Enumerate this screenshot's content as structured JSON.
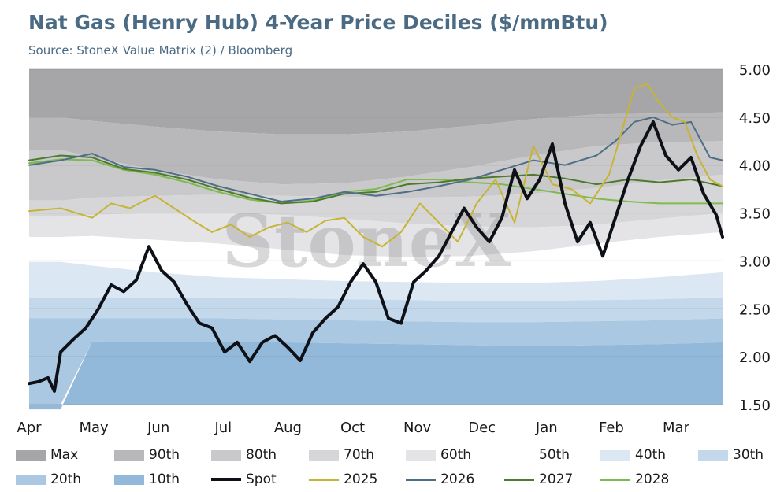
{
  "title": "Nat Gas (Henry Hub) 4-Year Price Deciles ($/mmBtu)",
  "subtitle": "Source: StoneX Value Matrix (2) / Bloomberg",
  "watermark": "StoneX",
  "colors": {
    "max": "#a6a6a8",
    "p90": "#b8b8ba",
    "p80": "#c9c9cb",
    "p70": "#d6d6d8",
    "p60": "#e4e4e6",
    "p50": "#ffffff",
    "p40": "#dbe7f2",
    "p30": "#c3d8ea",
    "p20": "#abc8e2",
    "p10": "#92b8da",
    "spot": "#0d1117",
    "y2025": "#c7b436",
    "y2026": "#4e6f86",
    "y2027": "#4e7a2e",
    "y2028": "#7fba4f"
  },
  "legend": [
    {
      "key": "max",
      "label": "Max",
      "kind": "box"
    },
    {
      "key": "p90",
      "label": "90th",
      "kind": "box"
    },
    {
      "key": "p80",
      "label": "80th",
      "kind": "box"
    },
    {
      "key": "p70",
      "label": "70th",
      "kind": "box"
    },
    {
      "key": "p60",
      "label": "60th",
      "kind": "box"
    },
    {
      "key": "p50",
      "label": "50th",
      "kind": "box"
    },
    {
      "key": "p40",
      "label": "40th",
      "kind": "box"
    },
    {
      "key": "p30",
      "label": "30th",
      "kind": "box"
    },
    {
      "key": "p20",
      "label": "20th",
      "kind": "box"
    },
    {
      "key": "p10",
      "label": "10th",
      "kind": "box"
    },
    {
      "key": "spot",
      "label": "Spot",
      "kind": "line"
    },
    {
      "key": "y2025",
      "label": "2025",
      "kind": "line"
    },
    {
      "key": "y2026",
      "label": "2026",
      "kind": "line"
    },
    {
      "key": "y2027",
      "label": "2027",
      "kind": "line"
    },
    {
      "key": "y2028",
      "label": "2028",
      "kind": "line"
    }
  ],
  "chart_data": {
    "type": "area",
    "title": "Nat Gas (Henry Hub) 4-Year Price Deciles ($/mmBtu)",
    "subtitle": "Source: StoneX Value Matrix (2) / Bloomberg",
    "x_tick_labels": [
      "Apr",
      "May",
      "Jun",
      "Jul",
      "Aug",
      "Oct",
      "Nov",
      "Dec",
      "Jan",
      "Feb",
      "Mar"
    ],
    "y_tick_labels": [
      "5.00",
      "4.50",
      "4.00",
      "3.50",
      "3.00",
      "2.50",
      "2.00",
      "1.50"
    ],
    "ylim": [
      1.5,
      5.0
    ],
    "y_axis_side": "right",
    "x_domain": [
      0,
      11
    ],
    "legend_position": "bottom",
    "grid": "horizontal",
    "deciles": {
      "x": [
        0,
        0.5,
        1,
        2,
        3,
        4,
        5,
        6,
        7,
        8,
        9,
        10,
        11
      ],
      "min": [
        1.5,
        1.5,
        1.5,
        1.5,
        1.5,
        1.5,
        1.5,
        1.5,
        1.5,
        1.5,
        1.5,
        1.5,
        1.5
      ],
      "p10": [
        1.45,
        1.45,
        2.16,
        2.15,
        2.15,
        2.15,
        2.14,
        2.13,
        2.12,
        2.11,
        2.12,
        2.13,
        2.15
      ],
      "p20": [
        2.4,
        2.4,
        2.4,
        2.4,
        2.4,
        2.39,
        2.38,
        2.37,
        2.36,
        2.36,
        2.37,
        2.38,
        2.4
      ],
      "p30": [
        2.62,
        2.62,
        2.62,
        2.62,
        2.62,
        2.61,
        2.6,
        2.59,
        2.58,
        2.58,
        2.59,
        2.6,
        2.62
      ],
      "p40": [
        2.99,
        2.99,
        2.95,
        2.88,
        2.83,
        2.81,
        2.79,
        2.78,
        2.77,
        2.77,
        2.79,
        2.83,
        2.88
      ],
      "p50": [
        3.25,
        3.25,
        3.26,
        3.22,
        3.18,
        3.12,
        3.06,
        3.04,
        3.05,
        3.1,
        3.18,
        3.25,
        3.3
      ],
      "p60": [
        3.46,
        3.46,
        3.48,
        3.5,
        3.5,
        3.48,
        3.44,
        3.39,
        3.36,
        3.35,
        3.38,
        3.44,
        3.5
      ],
      "p70": [
        3.63,
        3.63,
        3.66,
        3.68,
        3.69,
        3.68,
        3.67,
        3.66,
        3.67,
        3.7,
        3.76,
        3.84,
        3.9
      ],
      "p80": [
        4.16,
        4.16,
        4.08,
        3.95,
        3.85,
        3.8,
        3.81,
        3.88,
        3.98,
        4.1,
        4.2,
        4.24,
        4.25
      ],
      "p90": [
        4.5,
        4.5,
        4.46,
        4.4,
        4.35,
        4.32,
        4.32,
        4.35,
        4.41,
        4.48,
        4.53,
        4.54,
        4.55
      ],
      "max": [
        5.0,
        5.0,
        5.0,
        5.0,
        5.0,
        5.0,
        5.0,
        5.0,
        5.0,
        5.0,
        5.0,
        5.0,
        5.0
      ]
    },
    "series": [
      {
        "name": "Spot",
        "key": "spot",
        "width": 4,
        "x": [
          0,
          0.15,
          0.3,
          0.4,
          0.5,
          0.7,
          0.9,
          1.1,
          1.3,
          1.5,
          1.7,
          1.9,
          2.1,
          2.3,
          2.5,
          2.7,
          2.9,
          3.1,
          3.3,
          3.5,
          3.7,
          3.9,
          4.1,
          4.3,
          4.5,
          4.7,
          4.9,
          5.1,
          5.3,
          5.5,
          5.7,
          5.9,
          6.1,
          6.3,
          6.5,
          6.7,
          6.9,
          7.1,
          7.3,
          7.5,
          7.7,
          7.9,
          8.1,
          8.3,
          8.5,
          8.7,
          8.9,
          9.1,
          9.3,
          9.5,
          9.7,
          9.9,
          10.1,
          10.3,
          10.5,
          10.7,
          10.9,
          11
        ],
        "y": [
          1.72,
          1.74,
          1.78,
          1.64,
          2.05,
          2.18,
          2.3,
          2.5,
          2.75,
          2.68,
          2.8,
          3.15,
          2.9,
          2.78,
          2.55,
          2.35,
          2.3,
          2.05,
          2.15,
          1.95,
          2.15,
          2.22,
          2.1,
          1.96,
          2.25,
          2.4,
          2.52,
          2.78,
          2.97,
          2.78,
          2.4,
          2.35,
          2.78,
          2.9,
          3.05,
          3.3,
          3.55,
          3.35,
          3.2,
          3.45,
          3.95,
          3.65,
          3.85,
          4.22,
          3.6,
          3.2,
          3.4,
          3.05,
          3.45,
          3.85,
          4.2,
          4.45,
          4.1,
          3.95,
          4.08,
          3.7,
          3.48,
          3.25
        ]
      },
      {
        "name": "2025",
        "key": "y2025",
        "width": 2,
        "x": [
          0,
          0.5,
          1,
          1.3,
          1.6,
          1.8,
          2,
          2.3,
          2.6,
          2.9,
          3.2,
          3.5,
          3.8,
          4.1,
          4.4,
          4.7,
          5,
          5.3,
          5.6,
          5.9,
          6.2,
          6.5,
          6.8,
          7.1,
          7.4,
          7.7,
          8,
          8.3,
          8.6,
          8.9,
          9.2,
          9.4,
          9.6,
          9.8,
          10,
          10.2,
          10.4,
          10.6,
          10.8,
          11
        ],
        "y": [
          3.52,
          3.55,
          3.45,
          3.6,
          3.55,
          3.62,
          3.68,
          3.55,
          3.42,
          3.3,
          3.38,
          3.25,
          3.35,
          3.4,
          3.3,
          3.42,
          3.45,
          3.25,
          3.15,
          3.3,
          3.6,
          3.4,
          3.2,
          3.6,
          3.85,
          3.4,
          4.2,
          3.8,
          3.75,
          3.6,
          3.9,
          4.35,
          4.8,
          4.85,
          4.65,
          4.5,
          4.45,
          4.1,
          3.85,
          3.78
        ]
      },
      {
        "name": "2026",
        "key": "y2026",
        "width": 2,
        "x": [
          0,
          0.5,
          1,
          1.5,
          2,
          2.5,
          3,
          3.5,
          4,
          4.5,
          5,
          5.5,
          6,
          6.5,
          7,
          7.5,
          8,
          8.5,
          9,
          9.3,
          9.6,
          9.9,
          10.2,
          10.5,
          10.8,
          11
        ],
        "y": [
          4.0,
          4.05,
          4.12,
          3.98,
          3.95,
          3.88,
          3.78,
          3.7,
          3.62,
          3.65,
          3.72,
          3.68,
          3.72,
          3.78,
          3.85,
          3.95,
          4.05,
          4.0,
          4.1,
          4.25,
          4.45,
          4.5,
          4.42,
          4.45,
          4.08,
          4.05
        ]
      },
      {
        "name": "2027",
        "key": "y2027",
        "width": 2,
        "x": [
          0,
          0.5,
          1,
          1.5,
          2,
          2.5,
          3,
          3.5,
          4,
          4.5,
          5,
          5.5,
          6,
          6.5,
          7,
          7.5,
          8,
          8.5,
          9,
          9.5,
          10,
          10.5,
          11
        ],
        "y": [
          4.05,
          4.1,
          4.08,
          3.96,
          3.92,
          3.85,
          3.75,
          3.66,
          3.6,
          3.62,
          3.7,
          3.72,
          3.8,
          3.82,
          3.86,
          3.88,
          3.9,
          3.86,
          3.8,
          3.85,
          3.82,
          3.85,
          3.78
        ]
      },
      {
        "name": "2028",
        "key": "y2028",
        "width": 2,
        "x": [
          0,
          0.5,
          1,
          1.5,
          2,
          2.5,
          3,
          3.5,
          4,
          4.5,
          5,
          5.5,
          6,
          6.5,
          7,
          7.5,
          8,
          8.5,
          9,
          9.5,
          10,
          10.5,
          11
        ],
        "y": [
          4.02,
          4.06,
          4.05,
          3.95,
          3.9,
          3.82,
          3.72,
          3.64,
          3.6,
          3.63,
          3.72,
          3.75,
          3.85,
          3.85,
          3.82,
          3.8,
          3.75,
          3.7,
          3.65,
          3.62,
          3.6,
          3.6,
          3.6
        ]
      }
    ]
  }
}
